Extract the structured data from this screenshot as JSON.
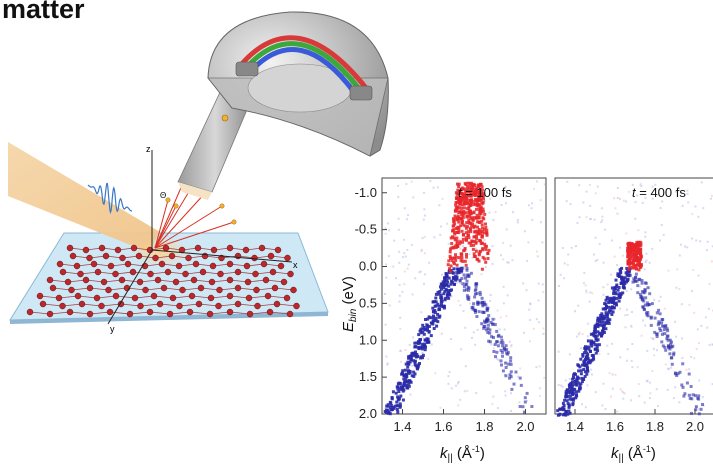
{
  "title": "matter",
  "scene": {
    "axis_x": "x",
    "axis_y": "y",
    "axis_z": "z",
    "angle_label": "Θ"
  },
  "arpes": {
    "ylabel_main": "E",
    "ylabel_sub": "bin",
    "ylabel_unit": " (eV)",
    "xlabel_main": "k",
    "xlabel_sub": "||",
    "xlabel_unit": " (Å",
    "xlabel_exp": "-1",
    "xlabel_close": ")",
    "y_ticks": [
      "-1.0",
      "-0.5",
      "0.0",
      "0.5",
      "1.0",
      "1.5",
      "2.0"
    ],
    "x_ticks": [
      "1.4",
      "1.6",
      "1.8",
      "2.0"
    ],
    "panels": [
      {
        "t_label": "t",
        "t_value": " = 100 fs"
      },
      {
        "t_label": "t",
        "t_value": " = 400 fs"
      }
    ]
  },
  "chart_data": {
    "type": "heatmap",
    "ylabel": "E_bin (eV)",
    "xlabel": "k|| (Å-1)",
    "ylim": [
      -1.2,
      2.0
    ],
    "xlim": [
      1.3,
      2.1
    ],
    "y_inverted": true,
    "colors": {
      "occupied": "#2a2aa8",
      "excited": "#e8262a"
    },
    "panels": [
      {
        "time": "t = 100 fs",
        "cone_apex_k": 1.68,
        "cone_apex_E": 0.0,
        "excited_k": 1.72,
        "excited_E_range": [
          -1.15,
          0.05
        ]
      },
      {
        "time": "t = 400 fs",
        "cone_apex_k": 1.68,
        "cone_apex_E": 0.0,
        "excited_k": 1.69,
        "excited_E_range": [
          -0.35,
          0.05
        ]
      }
    ]
  }
}
